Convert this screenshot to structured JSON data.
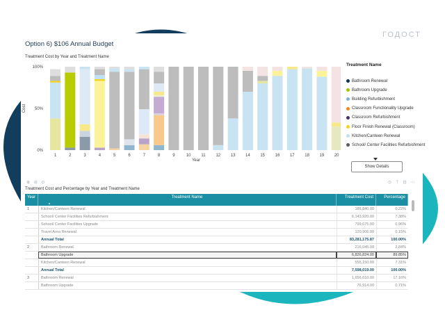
{
  "header": {
    "title": "Option 6) $106 Annual Budget",
    "watermark": "ГОДОСТ"
  },
  "chart_section": {
    "subtitle": "Treatment Cost by Year and Treatment Name",
    "show_details_label": "Show Details"
  },
  "legend": {
    "title": "Treatment Name",
    "items": [
      {
        "label": "Bathroom Renewal",
        "color": "#0c3550"
      },
      {
        "label": "Bathroom Upgrade",
        "color": "#a8c400"
      },
      {
        "label": "Building Refurbishment",
        "color": "#7fb1d7"
      },
      {
        "label": "Classroom Functionality Upgrade",
        "color": "#f08a1e"
      },
      {
        "label": "Classroom Refurbishment",
        "color": "#4a2c6b"
      },
      {
        "label": "Floor Finish Renewal (Classroom)",
        "color": "#f7d31a"
      },
      {
        "label": "Kitchen/Canteen Renewal",
        "color": "#bfe1f2"
      },
      {
        "label": "School/ Center Facilities Refurbishment",
        "color": "#5b5b5b"
      }
    ]
  },
  "chart_data": {
    "type": "bar",
    "stacked": true,
    "percent": true,
    "categories": [
      "1",
      "2",
      "3",
      "4",
      "5",
      "6",
      "7",
      "8",
      "9",
      "10",
      "11",
      "12",
      "13",
      "14",
      "15",
      "16",
      "17",
      "18",
      "19",
      "20"
    ],
    "xlabel": "Year",
    "ylabel": "Cost",
    "yticks": [
      "100%",
      "50%",
      "0%"
    ],
    "grid": false,
    "legend": "right",
    "stacks": [
      [
        {
          "c": "#e6e6a0",
          "v": 38
        },
        {
          "c": "#c8e4f2",
          "v": 43
        },
        {
          "c": "#f7d31a",
          "v": 2
        },
        {
          "c": "#bdbdbd",
          "v": 6
        },
        {
          "c": "#dedede",
          "v": 8
        }
      ],
      [
        {
          "c": "#8a9aa8",
          "v": 3
        },
        {
          "c": "#b9cc00",
          "v": 90
        },
        {
          "c": "#dedede",
          "v": 7
        }
      ],
      [
        {
          "c": "#8a9aa8",
          "v": 16
        },
        {
          "c": "#c9d4de",
          "v": 7
        },
        {
          "c": "#f7e98a",
          "v": 8
        },
        {
          "c": "#dde9f4",
          "v": 66
        },
        {
          "c": "#c8e4f2",
          "v": 3
        }
      ],
      [
        {
          "c": "#b8a4c8",
          "v": 3
        },
        {
          "c": "#fbf39a",
          "v": 80
        },
        {
          "c": "#f7d31a",
          "v": 2
        },
        {
          "c": "#bfe1f2",
          "v": 5
        },
        {
          "c": "#bdbdbd",
          "v": 7
        },
        {
          "c": "#dedede",
          "v": 3
        }
      ],
      [
        {
          "c": "#f4d4a0",
          "v": 2
        },
        {
          "c": "#bdbdbd",
          "v": 92
        },
        {
          "c": "#c8e4f2",
          "v": 4
        },
        {
          "c": "#dedede",
          "v": 2
        }
      ],
      [
        {
          "c": "#8fb6cc",
          "v": 6
        },
        {
          "c": "#dfe5ea",
          "v": 7
        },
        {
          "c": "#bdbdbd",
          "v": 81
        },
        {
          "c": "#c8e4f2",
          "v": 3
        },
        {
          "c": "#dedede",
          "v": 3
        }
      ],
      [
        {
          "c": "#f4d4a0",
          "v": 7
        },
        {
          "c": "#b8a4c8",
          "v": 7
        },
        {
          "c": "#f3e3d9",
          "v": 5
        },
        {
          "c": "#dde9f4",
          "v": 30
        },
        {
          "c": "#bdbdbd",
          "v": 48
        },
        {
          "c": "#c8e4f2",
          "v": 3
        }
      ],
      [
        {
          "c": "#8fb6cc",
          "v": 6
        },
        {
          "c": "#f8c98a",
          "v": 36
        },
        {
          "c": "#d9cfe2",
          "v": 2
        },
        {
          "c": "#c3abd3",
          "v": 20
        },
        {
          "c": "#eef0c8",
          "v": 2
        },
        {
          "c": "#f7e98a",
          "v": 4
        },
        {
          "c": "#dde9f4",
          "v": 10
        },
        {
          "c": "#bdbdbd",
          "v": 14
        },
        {
          "c": "#dedede",
          "v": 6
        }
      ],
      [
        {
          "c": "#bdbdbd",
          "v": 100
        }
      ],
      [
        {
          "c": "#bdbdbd",
          "v": 100
        }
      ],
      [
        {
          "c": "#bdbdbd",
          "v": 100
        }
      ],
      [
        {
          "c": "#c8e4f2",
          "v": 6
        },
        {
          "c": "#bdbdbd",
          "v": 94
        }
      ],
      [
        {
          "c": "#c8e4f2",
          "v": 38
        },
        {
          "c": "#bdbdbd",
          "v": 62
        }
      ],
      [
        {
          "c": "#c8e4f2",
          "v": 70
        },
        {
          "c": "#bdbdbd",
          "v": 25
        },
        {
          "c": "#f3e3e3",
          "v": 5
        }
      ],
      [
        {
          "c": "#c8e4f2",
          "v": 80
        },
        {
          "c": "#e6e6a0",
          "v": 3
        },
        {
          "c": "#bdbdbd",
          "v": 6
        },
        {
          "c": "#f3e3e3",
          "v": 11
        }
      ],
      [
        {
          "c": "#c8e4f2",
          "v": 89
        },
        {
          "c": "#fbf39a",
          "v": 6
        },
        {
          "c": "#f3e3e3",
          "v": 5
        }
      ],
      [
        {
          "c": "#c8e4f2",
          "v": 97
        },
        {
          "c": "#f7e98a",
          "v": 3
        }
      ],
      [
        {
          "c": "#c8e4f2",
          "v": 98
        },
        {
          "c": "#f3e3e3",
          "v": 2
        }
      ],
      [
        {
          "c": "#c8e4f2",
          "v": 88
        },
        {
          "c": "#fbf39a",
          "v": 7
        },
        {
          "c": "#f3e3e3",
          "v": 5
        }
      ],
      [
        {
          "c": "#e8e8c0",
          "v": 28
        },
        {
          "c": "#f7e98a",
          "v": 5
        },
        {
          "c": "#f3e3e3",
          "v": 67
        }
      ]
    ]
  },
  "toolbar": {
    "left_icons": "⊕ ⊖ ⊙",
    "right_icons": "⊙ ⊤ ⊡ ⋯"
  },
  "table": {
    "subtitle": "Treatment Cost and Percentage by Year and Treatment Name",
    "columns": [
      "Year",
      "Treatment Name",
      "Treatment Cost",
      "Percentage"
    ],
    "rows": [
      {
        "year": "1",
        "name": "Kitchen/Canteen Renewal",
        "cost": "186,840.00",
        "pct": "0.22%",
        "kind": "normal"
      },
      {
        "year": "",
        "name": "School/ Center Facilities Refurbishment",
        "cost": "6,143,920.00",
        "pct": "7.38%",
        "kind": "normal"
      },
      {
        "year": "",
        "name": "School/ Center Facilities Upgrade",
        "cost": "799,675.00",
        "pct": "0.96%",
        "kind": "normal"
      },
      {
        "year": "",
        "name": "Travel Area Renewal",
        "cost": "120,906.00",
        "pct": "0.15%",
        "kind": "normal"
      },
      {
        "year": "",
        "name": "Annual Total",
        "cost": "83,281,175.87",
        "pct": "100.00%",
        "kind": "total"
      },
      {
        "year": "2",
        "name": "Bathroom Renewal",
        "cost": "216,045.00",
        "pct": "2.84%",
        "kind": "normal"
      },
      {
        "year": "",
        "name": "Bathroom Upgrade",
        "cost": "6,826,824.00",
        "pct": "89.85%",
        "kind": "hl"
      },
      {
        "year": "",
        "name": "Kitchen/Canteen Renewal",
        "cost": "555,150.00",
        "pct": "7.31%",
        "kind": "normal"
      },
      {
        "year": "",
        "name": "Annual Total",
        "cost": "7,598,019.00",
        "pct": "100.00%",
        "kind": "total"
      },
      {
        "year": "3",
        "name": "Bathroom Renewal",
        "cost": "1,656,610.00",
        "pct": "17.16%",
        "kind": "normal"
      },
      {
        "year": "",
        "name": "Bathroom Upgrade",
        "cost": "76,914.00",
        "pct": "0.71%",
        "kind": "normal"
      }
    ]
  }
}
